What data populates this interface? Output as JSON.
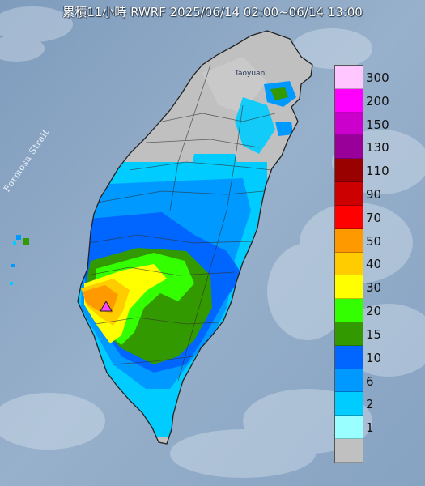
{
  "title": "累積11小時 RWRF 2025/06/14 02:00~06/14 13:00",
  "sea_label": "Formosa Strait",
  "city_label": "Taoyuan",
  "legend": {
    "unit_steps": [
      {
        "label": "300",
        "color": "#ffc6ff"
      },
      {
        "label": "200",
        "color": "#ff00ff"
      },
      {
        "label": "150",
        "color": "#cc00cc"
      },
      {
        "label": "130",
        "color": "#990099"
      },
      {
        "label": "110",
        "color": "#990000"
      },
      {
        "label": "90",
        "color": "#cc0000"
      },
      {
        "label": "70",
        "color": "#ff0000"
      },
      {
        "label": "50",
        "color": "#ff9900"
      },
      {
        "label": "40",
        "color": "#ffcc00"
      },
      {
        "label": "30",
        "color": "#ffff00"
      },
      {
        "label": "20",
        "color": "#33ff00"
      },
      {
        "label": "15",
        "color": "#339900"
      },
      {
        "label": "10",
        "color": "#0066ff"
      },
      {
        "label": "6",
        "color": "#0099ff"
      },
      {
        "label": "2",
        "color": "#00ccff"
      },
      {
        "label": "1",
        "color": "#99ffff"
      },
      {
        "label": "",
        "color": "#c0c0c0"
      }
    ]
  },
  "colors": {
    "sea": "#8fa9c6",
    "land_dry": "#c0c0c0",
    "max_marker": "#ff44ff"
  }
}
